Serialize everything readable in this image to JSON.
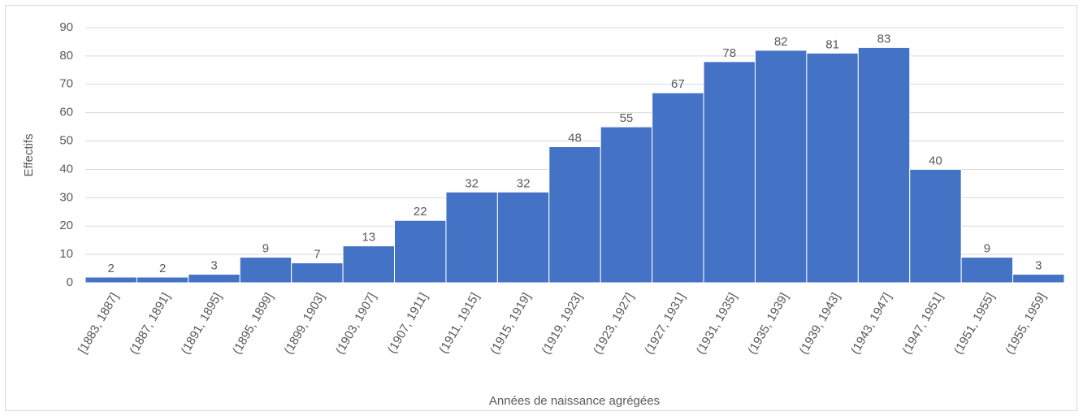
{
  "chart_data": {
    "type": "bar",
    "categories": [
      "[1883, 1887]",
      "(1887, 1891]",
      "(1891, 1895]",
      "(1895, 1899]",
      "(1899, 1903]",
      "(1903, 1907]",
      "(1907, 1911]",
      "(1911, 1915]",
      "(1915, 1919]",
      "(1919, 1923]",
      "(1923, 1927]",
      "(1927, 1931]",
      "(1931, 1935]",
      "(1935, 1939]",
      "(1939, 1943]",
      "(1943, 1947]",
      "(1947, 1951]",
      "(1951, 1955]",
      "(1955, 1959]"
    ],
    "values": [
      2,
      2,
      3,
      9,
      7,
      13,
      22,
      32,
      32,
      48,
      55,
      67,
      78,
      82,
      81,
      83,
      40,
      9,
      3
    ],
    "color": "#4472c4",
    "xlabel": "Années de naissance agrégées",
    "ylabel": "Effectifs",
    "ylim": [
      0,
      90
    ],
    "yticks": [
      0,
      10,
      20,
      30,
      40,
      50,
      60,
      70,
      80,
      90
    ],
    "grid": true
  }
}
